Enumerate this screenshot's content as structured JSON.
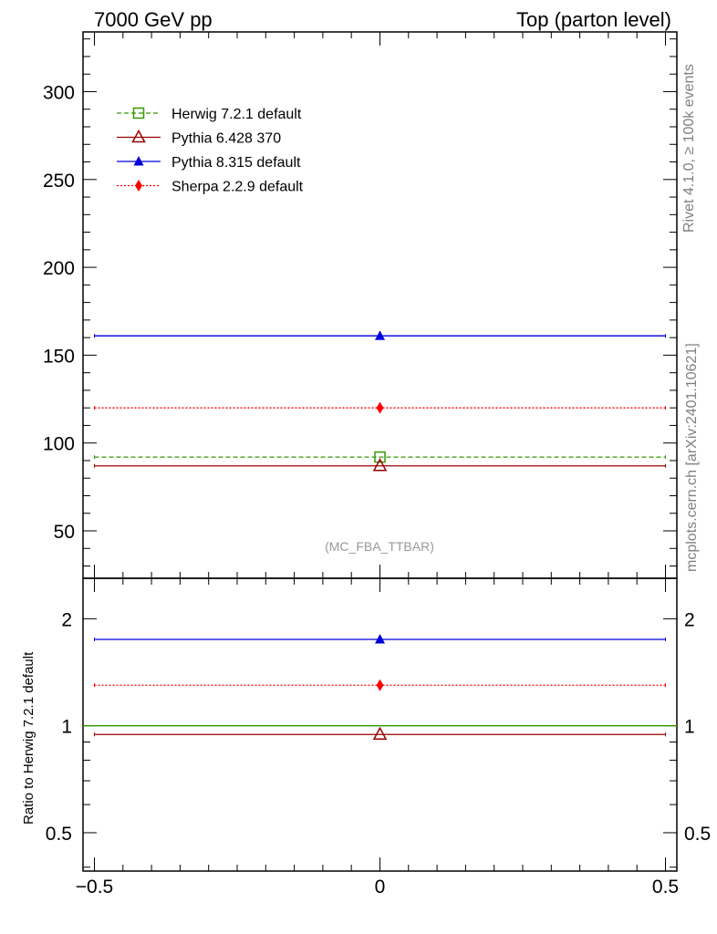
{
  "header": {
    "left_label": "7000 GeV pp",
    "right_label": "Top (parton level)"
  },
  "side_labels": {
    "rivet": "Rivet 4.1.0, ≥ 100k events",
    "source": "mcplots.cern.ch [arXiv:2401.10621]"
  },
  "watermark": "(MC_FBA_TTBAR)",
  "chart_data": [
    {
      "panel": "main",
      "type": "line",
      "x_range": [
        -0.5,
        0.5
      ],
      "ylim": [
        23,
        334
      ],
      "y_ticks": [
        50,
        100,
        150,
        200,
        250,
        300
      ],
      "y_tick_labels": [
        "50",
        "100",
        "150",
        "200",
        "250",
        "300"
      ],
      "x_ticks": [
        -0.5,
        0,
        0.5
      ],
      "legend_position": "top-left",
      "series": [
        {
          "name": "Herwig 7.2.1 default",
          "color": "#339900",
          "line": "dashed",
          "marker": "open-square",
          "x": [
            0
          ],
          "y": [
            92
          ]
        },
        {
          "name": "Pythia 6.428 370",
          "color": "#990000",
          "line": "solid",
          "marker": "open-triangle",
          "x": [
            0
          ],
          "y": [
            87
          ]
        },
        {
          "name": "Pythia 8.315 default",
          "color": "#0000dd",
          "line": "solid",
          "marker": "filled-triangle",
          "x": [
            0
          ],
          "y": [
            161
          ]
        },
        {
          "name": "Sherpa 2.2.9 default",
          "color": "#ff0000",
          "line": "dotted",
          "marker": "filled-diamond",
          "x": [
            0
          ],
          "y": [
            120
          ]
        }
      ]
    },
    {
      "panel": "ratio",
      "type": "line",
      "ylabel": "Ratio to Herwig 7.2.1 default",
      "x_range": [
        -0.5,
        0.5
      ],
      "ylim": [
        0.39,
        2.6
      ],
      "y_scale": "log",
      "y_ticks": [
        0.5,
        1,
        2
      ],
      "y_tick_labels": [
        "0.5",
        "1",
        "2"
      ],
      "x_ticks": [
        -0.5,
        0,
        0.5
      ],
      "x_tick_labels": [
        "−0.5",
        "0",
        "0.5"
      ],
      "series": [
        {
          "name": "Herwig 7.2.1 default",
          "color": "#339900",
          "line": "solid",
          "marker": "none",
          "x": [
            0
          ],
          "y": [
            1.0
          ]
        },
        {
          "name": "Pythia 6.428 370",
          "color": "#990000",
          "line": "solid",
          "marker": "open-triangle",
          "x": [
            0
          ],
          "y": [
            0.945
          ]
        },
        {
          "name": "Pythia 8.315 default",
          "color": "#0000dd",
          "line": "solid",
          "marker": "filled-triangle",
          "x": [
            0
          ],
          "y": [
            1.75
          ]
        },
        {
          "name": "Sherpa 2.2.9 default",
          "color": "#ff0000",
          "line": "dotted",
          "marker": "filled-diamond",
          "x": [
            0
          ],
          "y": [
            1.3
          ]
        }
      ]
    }
  ]
}
